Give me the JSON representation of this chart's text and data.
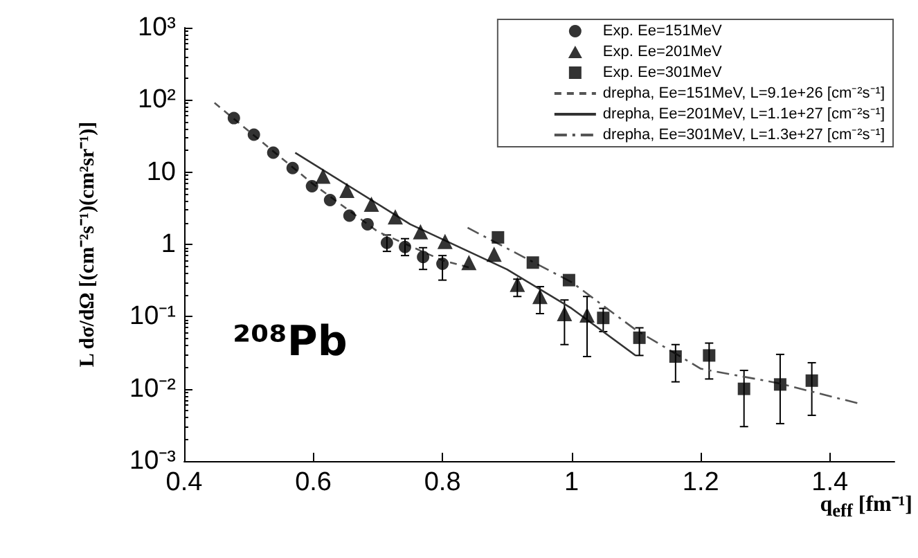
{
  "chart_data": {
    "type": "scatter",
    "xlabel": "q$_{eff}$ [fm⁻¹]",
    "ylabel": "L dσ/dΩ [(cm⁻²s⁻¹)(cm²sr⁻¹)]",
    "annotations": [
      "²⁰⁸Pb"
    ],
    "log": "y",
    "grid": false,
    "legend": "top right",
    "xlim": [
      0.4,
      1.5
    ],
    "xticks": [
      0.4,
      0.6,
      0.8,
      1,
      1.2,
      1.4
    ],
    "ylim": [
      0.001,
      1000
    ],
    "yticks": [
      {
        "value": 0.001,
        "label": "10⁻³"
      },
      {
        "value": 0.01,
        "label": "10⁻²"
      },
      {
        "value": 0.1,
        "label": "10⁻¹"
      },
      1,
      10,
      {
        "value": 100,
        "label": "10²"
      },
      {
        "value": 1000,
        "label": "10³"
      }
    ],
    "series": [
      {
        "name": "Exp. Ee=151MeV",
        "marker": "circle",
        "color": "#000000",
        "x": [
          0.477,
          0.508,
          0.538,
          0.568,
          0.598,
          0.626,
          0.656,
          0.684,
          0.714,
          0.742,
          0.77,
          0.8
        ],
        "values": [
          56,
          33,
          18.6,
          11.4,
          6.4,
          4.1,
          2.5,
          1.9,
          1.05,
          0.92,
          0.67,
          0.54
        ],
        "errors": [
          null,
          null,
          null,
          null,
          null,
          null,
          null,
          null,
          [
            0.8,
            1.35
          ],
          [
            0.7,
            1.2
          ],
          [
            0.45,
            0.9
          ],
          [
            0.32,
            0.7
          ]
        ]
      },
      {
        "name": "Exp. Ee=201MeV",
        "marker": "triangle",
        "color": "#000000",
        "x": [
          0.615,
          0.652,
          0.69,
          0.727,
          0.766,
          0.804,
          0.841,
          0.88,
          0.916,
          0.951,
          0.989,
          1.024
        ],
        "values": [
          8.8,
          5.6,
          3.6,
          2.4,
          1.5,
          1.1,
          0.56,
          0.73,
          0.28,
          0.19,
          0.11,
          0.105
        ],
        "errors": [
          null,
          null,
          null,
          null,
          null,
          null,
          null,
          null,
          [
            0.19,
            0.33
          ],
          [
            0.11,
            0.26
          ],
          [
            0.041,
            0.17
          ],
          [
            0.028,
            0.19
          ]
        ]
      },
      {
        "name": "Exp. Ee=301MeV",
        "marker": "square",
        "color": "#000000",
        "x": [
          0.886,
          0.94,
          0.996,
          1.049,
          1.105,
          1.161,
          1.213,
          1.267,
          1.323,
          1.372
        ],
        "values": [
          1.25,
          0.56,
          0.32,
          0.096,
          0.051,
          0.028,
          0.029,
          0.01,
          0.0115,
          0.013
        ],
        "errors": [
          null,
          null,
          null,
          [
            0.062,
            0.13
          ],
          [
            0.029,
            0.07
          ],
          [
            0.0125,
            0.041
          ],
          [
            0.0137,
            0.043
          ],
          [
            0.003,
            0.018
          ],
          [
            0.0033,
            0.03
          ],
          [
            0.0043,
            0.023
          ]
        ]
      },
      {
        "name": "drepha, Ee=151MeV, L=9.1e+26 [cm⁻²s⁻¹]",
        "type": "line",
        "marker": "none",
        "line_style": "dashed",
        "color": "#555555",
        "x": [
          0.447,
          0.6,
          0.7,
          0.8,
          0.845
        ],
        "values": [
          91,
          6.8,
          1.5,
          0.6,
          0.47
        ]
      },
      {
        "name": "drepha, Ee=201MeV, L=1.1e+27 [cm⁻²s⁻¹]",
        "type": "line",
        "marker": "none",
        "line_style": "solid",
        "color": "#333333",
        "x": [
          0.572,
          0.75,
          0.9,
          1.0,
          1.099
        ],
        "values": [
          18.6,
          1.9,
          0.45,
          0.13,
          0.029
        ]
      },
      {
        "name": "drepha, Ee=301MeV, L=1.3e+27 [cm⁻²s⁻¹]",
        "type": "line",
        "marker": "none",
        "line_style": "dashdot",
        "color": "#555555",
        "x": [
          0.839,
          1.0,
          1.1,
          1.2,
          1.32,
          1.447
        ],
        "values": [
          1.7,
          0.3,
          0.065,
          0.019,
          0.012,
          0.0062
        ]
      }
    ]
  }
}
